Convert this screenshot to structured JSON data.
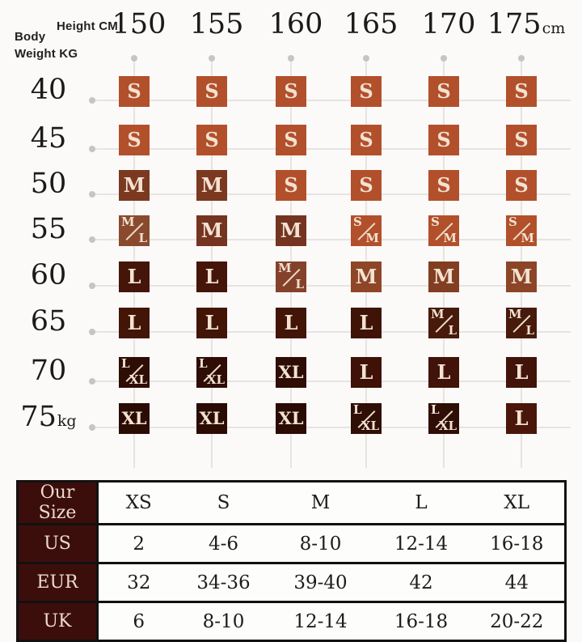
{
  "matrix": {
    "corner": {
      "body": "Body",
      "weight": "Weight KG",
      "height": "Height CM"
    },
    "columns": [
      {
        "label": "150",
        "suffix": ""
      },
      {
        "label": "155",
        "suffix": ""
      },
      {
        "label": "160",
        "suffix": ""
      },
      {
        "label": "165",
        "suffix": ""
      },
      {
        "label": "170",
        "suffix": ""
      },
      {
        "label": "175",
        "suffix": "cm"
      }
    ],
    "rows": [
      {
        "label": "40",
        "suffix": "",
        "cells": [
          {
            "label": "S",
            "bg": "#b2502b"
          },
          {
            "label": "S",
            "bg": "#b2502b"
          },
          {
            "label": "S",
            "bg": "#b2502b"
          },
          {
            "label": "S",
            "bg": "#b2502b"
          },
          {
            "label": "S",
            "bg": "#b2502b"
          },
          {
            "label": "S",
            "bg": "#b2502b"
          }
        ]
      },
      {
        "label": "45",
        "suffix": "",
        "cells": [
          {
            "label": "S",
            "bg": "#b2502b"
          },
          {
            "label": "S",
            "bg": "#b2502b"
          },
          {
            "label": "S",
            "bg": "#b2502b"
          },
          {
            "label": "S",
            "bg": "#b2502b"
          },
          {
            "label": "S",
            "bg": "#b2502b"
          },
          {
            "label": "S",
            "bg": "#b2502b"
          }
        ]
      },
      {
        "label": "50",
        "suffix": "",
        "cells": [
          {
            "label": "M",
            "bg": "#7b3920"
          },
          {
            "label": "M",
            "bg": "#7b3920"
          },
          {
            "label": "S",
            "bg": "#b2502b"
          },
          {
            "label": "S",
            "bg": "#b2502b"
          },
          {
            "label": "S",
            "bg": "#b2502b"
          },
          {
            "label": "S",
            "bg": "#b2502b"
          }
        ]
      },
      {
        "label": "55",
        "suffix": "",
        "cells": [
          {
            "split": [
              "M",
              "L"
            ],
            "bg": "#8a4a2e"
          },
          {
            "label": "M",
            "bg": "#743420"
          },
          {
            "label": "M",
            "bg": "#743420"
          },
          {
            "split": [
              "S",
              "M"
            ],
            "bg": "#b2502b"
          },
          {
            "split": [
              "S",
              "M"
            ],
            "bg": "#b2502b"
          },
          {
            "split": [
              "S",
              "M"
            ],
            "bg": "#b2502b"
          }
        ]
      },
      {
        "label": "60",
        "suffix": "",
        "cells": [
          {
            "label": "L",
            "bg": "#441508"
          },
          {
            "label": "L",
            "bg": "#441508"
          },
          {
            "split": [
              "M",
              "L"
            ],
            "bg": "#85422a"
          },
          {
            "label": "M",
            "bg": "#8e4627"
          },
          {
            "label": "M",
            "bg": "#823e20"
          },
          {
            "label": "M",
            "bg": "#8c4527"
          }
        ]
      },
      {
        "label": "65",
        "suffix": "",
        "cells": [
          {
            "label": "L",
            "bg": "#421507"
          },
          {
            "label": "L",
            "bg": "#421507"
          },
          {
            "label": "L",
            "bg": "#421507"
          },
          {
            "label": "L",
            "bg": "#3f1306"
          },
          {
            "split": [
              "M",
              "L"
            ],
            "bg": "#471a0c"
          },
          {
            "split": [
              "M",
              "L"
            ],
            "bg": "#471a0c"
          }
        ]
      },
      {
        "label": "70",
        "suffix": "",
        "cells": [
          {
            "split": [
              "L",
              "XL"
            ],
            "bg": "#2e0d05"
          },
          {
            "split": [
              "L",
              "XL"
            ],
            "bg": "#2e0d05"
          },
          {
            "label": "XL",
            "bg": "#2e0d05"
          },
          {
            "label": "L",
            "bg": "#3f1107"
          },
          {
            "label": "L",
            "bg": "#421308"
          },
          {
            "label": "L",
            "bg": "#421308"
          }
        ]
      },
      {
        "label": "75",
        "suffix": "kg",
        "cells": [
          {
            "label": "XL",
            "bg": "#2b0c04"
          },
          {
            "label": "XL",
            "bg": "#2b0c04"
          },
          {
            "label": "XL",
            "bg": "#2b0c04"
          },
          {
            "split": [
              "L",
              "XL"
            ],
            "bg": "#2f0e06"
          },
          {
            "split": [
              "L",
              "XL"
            ],
            "bg": "#2f0e06"
          },
          {
            "label": "L",
            "bg": "#4b160a"
          }
        ]
      }
    ]
  },
  "conversion_table": {
    "rows": [
      {
        "header": "Our Size",
        "values": [
          "XS",
          "S",
          "M",
          "L",
          "XL"
        ]
      },
      {
        "header": "US",
        "values": [
          "2",
          "4-6",
          "8-10",
          "12-14",
          "16-18"
        ]
      },
      {
        "header": "EUR",
        "values": [
          "32",
          "34-36",
          "39-40",
          "42",
          "44"
        ]
      },
      {
        "header": "UK",
        "values": [
          "6",
          "8-10",
          "12-14",
          "16-18",
          "20-22"
        ]
      }
    ]
  },
  "colors": {
    "size_s": "#b2502b",
    "size_m": "#7b3920",
    "size_l": "#421507",
    "size_xl": "#2b0c04",
    "table_header_bg": "#3b0e0c",
    "table_header_fg": "#eddacf",
    "grid_line": "#e7e4e0"
  },
  "chart_data": [
    {
      "type": "heatmap",
      "title": "Body Weight KG vs Height CM recommended size",
      "xlabel": "Height CM",
      "ylabel": "Body Weight KG",
      "x_categories": [
        "150",
        "155",
        "160",
        "165",
        "170",
        "175cm"
      ],
      "y_categories": [
        "40",
        "45",
        "50",
        "55",
        "60",
        "65",
        "70",
        "75kg"
      ],
      "values": [
        [
          "S",
          "S",
          "S",
          "S",
          "S",
          "S"
        ],
        [
          "S",
          "S",
          "S",
          "S",
          "S",
          "S"
        ],
        [
          "M",
          "M",
          "S",
          "S",
          "S",
          "S"
        ],
        [
          "M/L",
          "M",
          "M",
          "S/M",
          "S/M",
          "S/M"
        ],
        [
          "L",
          "L",
          "M/L",
          "M",
          "M",
          "M"
        ],
        [
          "L",
          "L",
          "L",
          "L",
          "M/L",
          "M/L"
        ],
        [
          "L/XL",
          "L/XL",
          "XL",
          "L",
          "L",
          "L"
        ],
        [
          "XL",
          "XL",
          "XL",
          "L/XL",
          "L/XL",
          "L"
        ]
      ]
    },
    {
      "type": "table",
      "columns": [
        "Our Size",
        "XS",
        "S",
        "M",
        "L",
        "XL"
      ],
      "rows": [
        [
          "US",
          "2",
          "4-6",
          "8-10",
          "12-14",
          "16-18"
        ],
        [
          "EUR",
          "32",
          "34-36",
          "39-40",
          "42",
          "44"
        ],
        [
          "UK",
          "6",
          "8-10",
          "12-14",
          "16-18",
          "20-22"
        ]
      ]
    }
  ]
}
